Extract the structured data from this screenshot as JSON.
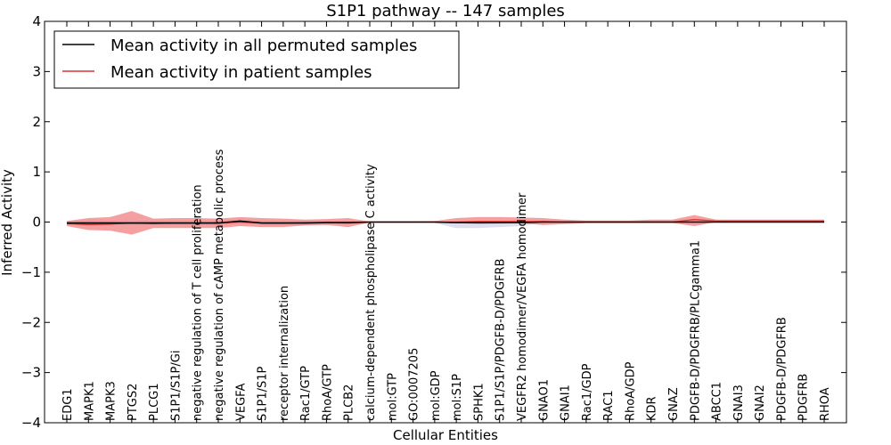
{
  "chart_data": {
    "type": "line",
    "title": "S1P1 pathway -- 147 samples",
    "xlabel": "Cellular Entities",
    "ylabel": "Inferred Activity",
    "ylim": [
      -4,
      4
    ],
    "yticks": [
      -4,
      -3,
      -2,
      -1,
      0,
      1,
      2,
      3,
      4
    ],
    "ytick_labels": [
      "−4",
      "−3",
      "−2",
      "−1",
      "0",
      "1",
      "2",
      "3",
      "4"
    ],
    "grid": false,
    "legend_position": "top-left",
    "categories": [
      "EDG1",
      "MAPK1",
      "MAPK3",
      "PTGS2",
      "PLCG1",
      "S1P1/S1P/Gi",
      "negative regulation of T cell proliferation",
      "negative regulation of cAMP metabolic process",
      "VEGFA",
      "S1P1/S1P",
      "receptor internalization",
      "Rac1/GTP",
      "RhoA/GTP",
      "PLCB2",
      "calcium-dependent phospholipase C activity",
      "mol:GTP",
      "GO:0007205",
      "mol:GDP",
      "mol:S1P",
      "SPHK1",
      "S1P1/S1P/PDGFB-D/PDGFRB",
      "VEGFR2 homodimer/VEGFA homodimer",
      "GNAO1",
      "GNAI1",
      "Rac1/GDP",
      "RAC1",
      "RhoA/GDP",
      "KDR",
      "GNAZ",
      "PDGFB-D/PDGFRB/PLCgamma1",
      "ABCC1",
      "GNAI3",
      "GNAI2",
      "PDGFB-D/PDGFRB",
      "PDGFRB",
      "RHOA"
    ],
    "series": [
      {
        "name": "Mean activity in all permuted samples",
        "color": "#000000",
        "values": [
          -0.02,
          -0.02,
          -0.02,
          -0.02,
          -0.02,
          -0.02,
          -0.02,
          -0.02,
          0.02,
          -0.02,
          -0.02,
          -0.02,
          -0.01,
          -0.01,
          0.0,
          0.0,
          0.0,
          0.0,
          -0.01,
          -0.01,
          -0.01,
          -0.01,
          0.0,
          0.0,
          0.0,
          0.0,
          0.0,
          0.0,
          0.0,
          0.0,
          0.0,
          0.0,
          0.0,
          0.0,
          0.0,
          0.0
        ],
        "band_upper": [
          0.02,
          0.03,
          0.03,
          0.03,
          0.03,
          0.03,
          0.03,
          0.03,
          0.06,
          0.03,
          0.03,
          0.03,
          0.03,
          0.03,
          0.01,
          0.01,
          0.01,
          0.01,
          0.02,
          0.02,
          0.02,
          0.02,
          0.01,
          0.01,
          0.01,
          0.01,
          0.01,
          0.01,
          0.01,
          0.01,
          0.01,
          0.01,
          0.01,
          0.01,
          0.01,
          0.01
        ],
        "band_lower": [
          -0.06,
          -0.06,
          -0.06,
          -0.06,
          -0.06,
          -0.06,
          -0.06,
          -0.06,
          -0.02,
          -0.06,
          -0.06,
          -0.06,
          -0.05,
          -0.05,
          -0.01,
          -0.01,
          -0.01,
          -0.02,
          -0.12,
          -0.12,
          -0.1,
          -0.08,
          -0.01,
          -0.01,
          -0.01,
          -0.01,
          -0.01,
          -0.01,
          -0.01,
          -0.01,
          -0.01,
          -0.01,
          -0.01,
          -0.01,
          -0.01,
          -0.01
        ]
      },
      {
        "name": "Mean activity in patient samples",
        "color": "#e03030",
        "band_color": "#f08080",
        "values": [
          -0.03,
          -0.05,
          -0.04,
          -0.02,
          -0.03,
          -0.02,
          -0.02,
          -0.02,
          0.0,
          -0.02,
          -0.02,
          -0.01,
          -0.01,
          -0.02,
          0.0,
          0.0,
          0.0,
          0.0,
          0.0,
          0.01,
          0.01,
          0.01,
          0.01,
          0.0,
          0.0,
          0.0,
          0.0,
          0.0,
          0.0,
          0.05,
          0.02,
          0.02,
          0.02,
          0.02,
          0.02,
          0.02
        ],
        "band_upper": [
          0.02,
          0.08,
          0.1,
          0.22,
          0.07,
          0.08,
          0.08,
          0.07,
          0.1,
          0.08,
          0.07,
          0.05,
          0.06,
          0.08,
          0.01,
          0.01,
          0.01,
          0.02,
          0.08,
          0.1,
          0.1,
          0.09,
          0.08,
          0.05,
          0.03,
          0.03,
          0.03,
          0.05,
          0.05,
          0.14,
          0.05,
          0.05,
          0.05,
          0.05,
          0.05,
          0.05
        ],
        "band_lower": [
          -0.08,
          -0.16,
          -0.17,
          -0.25,
          -0.12,
          -0.12,
          -0.12,
          -0.12,
          -0.08,
          -0.1,
          -0.1,
          -0.07,
          -0.06,
          -0.1,
          -0.01,
          -0.01,
          -0.01,
          -0.01,
          -0.02,
          -0.04,
          -0.03,
          -0.02,
          -0.06,
          -0.04,
          -0.02,
          -0.02,
          -0.02,
          -0.02,
          -0.02,
          -0.08,
          0.0,
          0.0,
          0.0,
          0.0,
          0.0,
          0.0
        ]
      }
    ]
  }
}
